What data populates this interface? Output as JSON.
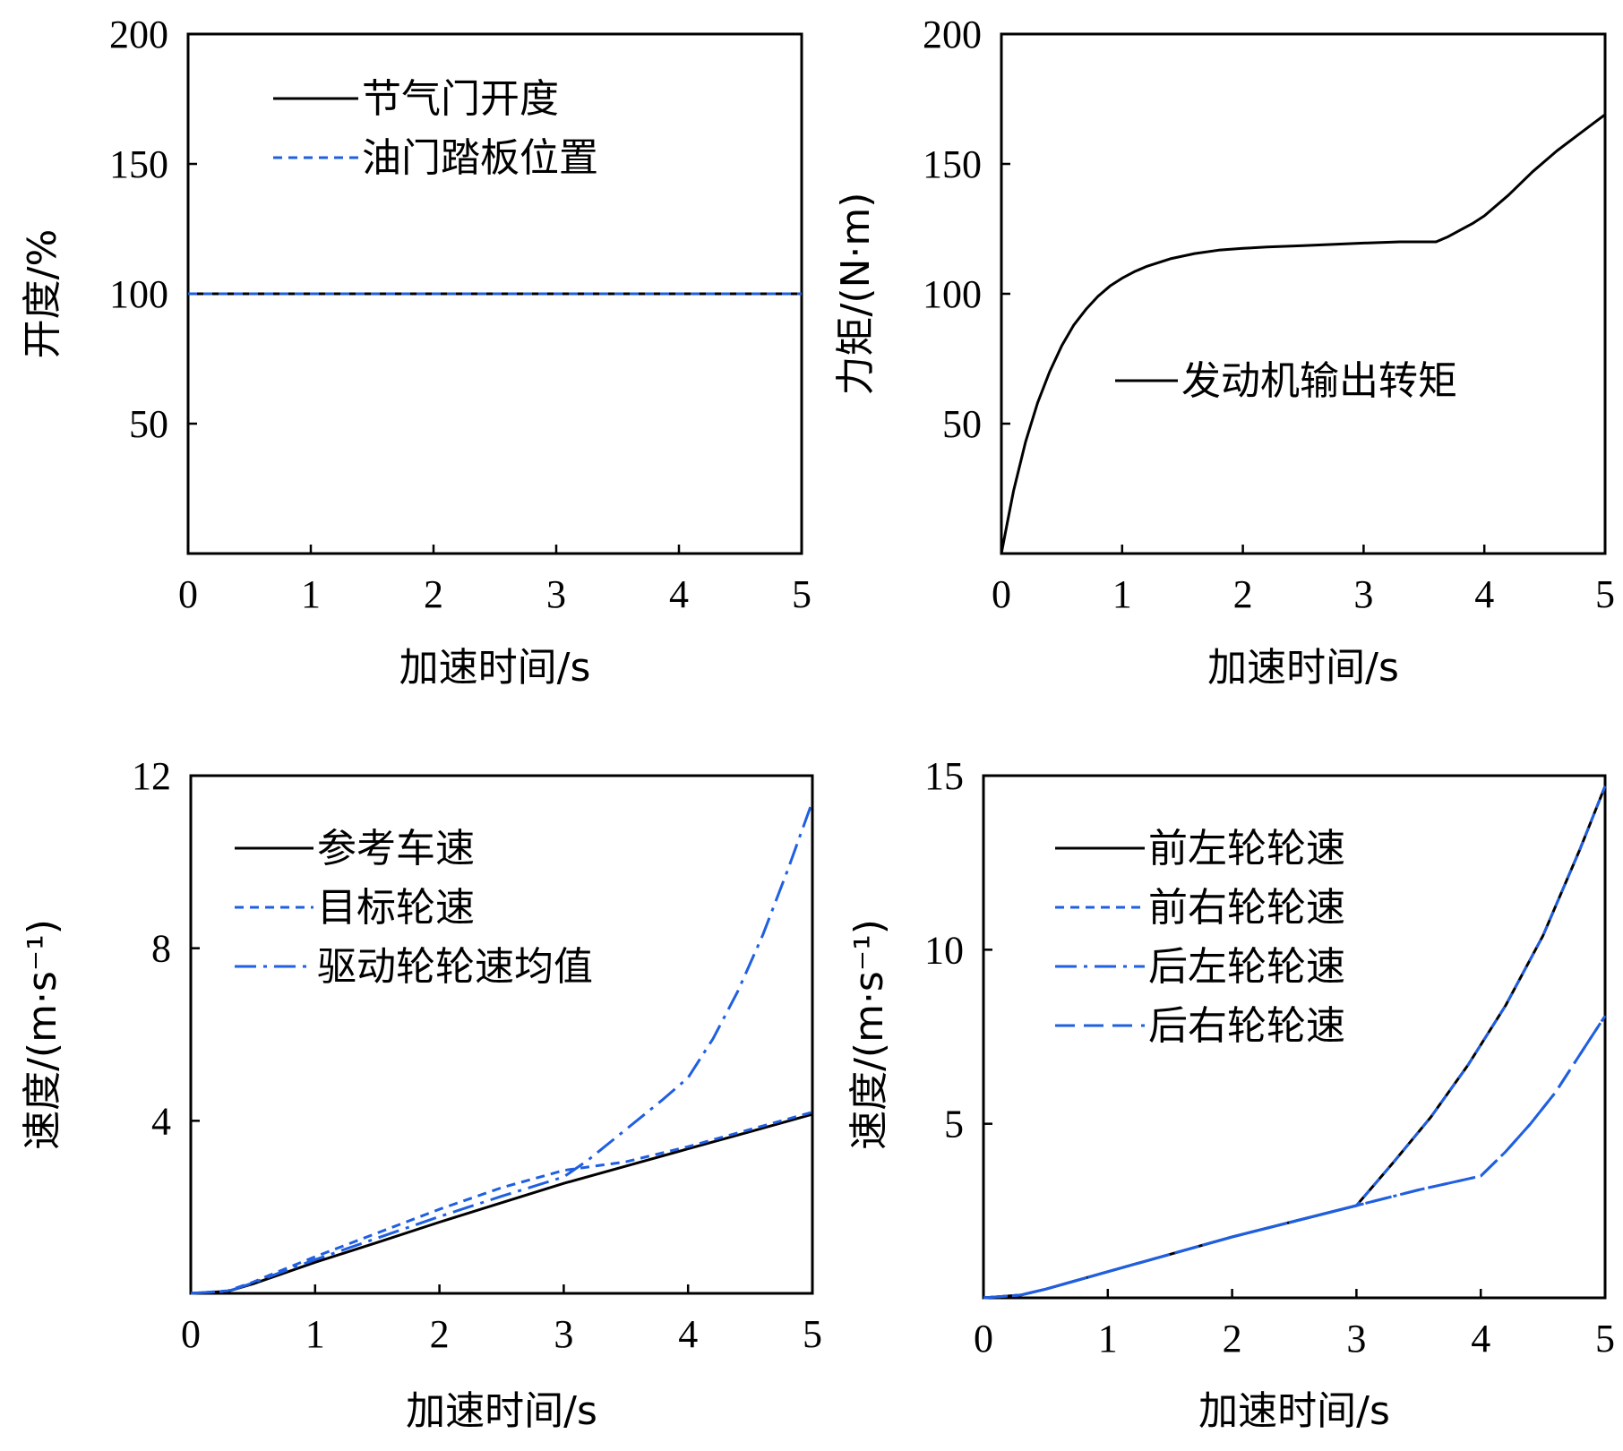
{
  "chart_data": [
    {
      "type": "line",
      "panel": "top-left",
      "xlabel": "加速时间/s",
      "ylabel": "开度/%",
      "xlim": [
        0,
        5
      ],
      "ylim": [
        0,
        200
      ],
      "xticks": [
        "0",
        "1",
        "2",
        "3",
        "4",
        "5"
      ],
      "yticks": [
        "200",
        "150",
        "100",
        "50"
      ],
      "legend_placement": "top-left",
      "series": [
        {
          "name": "节气门开度",
          "color": "#000000",
          "dash": "solid",
          "x": [
            0,
            5
          ],
          "y": [
            100,
            100
          ]
        },
        {
          "name": "油门踏板位置",
          "color": "#1f5fe0",
          "dash": "dot",
          "x": [
            0,
            5
          ],
          "y": [
            100,
            100
          ]
        }
      ]
    },
    {
      "type": "line",
      "panel": "top-right",
      "xlabel": "加速时间/s",
      "ylabel": "力矩/(N·m)",
      "xlim": [
        0,
        5
      ],
      "ylim": [
        0,
        200
      ],
      "xticks": [
        "0",
        "1",
        "2",
        "3",
        "4",
        "5"
      ],
      "yticks": [
        "200",
        "150",
        "100",
        "50"
      ],
      "legend_placement": "center-right",
      "series": [
        {
          "name": "发动机输出转矩",
          "color": "#000000",
          "dash": "solid",
          "x": [
            0,
            0.05,
            0.1,
            0.2,
            0.3,
            0.4,
            0.5,
            0.6,
            0.7,
            0.8,
            0.9,
            1.0,
            1.1,
            1.2,
            1.4,
            1.6,
            1.8,
            2.0,
            2.2,
            2.5,
            3.0,
            3.3,
            3.6,
            3.7,
            3.8,
            3.9,
            4.0,
            4.2,
            4.4,
            4.6,
            4.8,
            5.0
          ],
          "y": [
            0,
            12,
            24,
            43,
            58,
            70,
            80,
            88,
            94,
            99,
            103,
            106,
            108.5,
            110.5,
            113.5,
            115.5,
            116.8,
            117.5,
            118,
            118.5,
            119.5,
            120,
            120,
            122,
            124.5,
            127,
            130,
            138,
            147,
            155,
            162,
            169
          ]
        }
      ]
    },
    {
      "type": "line",
      "panel": "bottom-left",
      "xlabel": "加速时间/s",
      "ylabel": "速度/(m·s⁻¹)",
      "xlim": [
        0,
        5
      ],
      "ylim": [
        0,
        12
      ],
      "xticks": [
        "0",
        "1",
        "2",
        "3",
        "4",
        "5"
      ],
      "yticks": [
        "12",
        "8",
        "4"
      ],
      "legend_placement": "top-left",
      "series": [
        {
          "name": "参考车速",
          "color": "#000000",
          "dash": "solid",
          "x": [
            0,
            0.3,
            0.5,
            0.7,
            1.0,
            1.5,
            2.0,
            2.5,
            3.0,
            3.5,
            4.0,
            4.5,
            5.0
          ],
          "y": [
            0,
            0.05,
            0.22,
            0.42,
            0.72,
            1.18,
            1.65,
            2.1,
            2.55,
            2.95,
            3.35,
            3.75,
            4.15
          ]
        },
        {
          "name": "目标轮速",
          "color": "#1f5fe0",
          "dash": "dot",
          "x": [
            0,
            0.3,
            0.5,
            0.7,
            1.0,
            1.5,
            2.0,
            2.5,
            3.0,
            3.5,
            4.0,
            4.5,
            5.0
          ],
          "y": [
            0,
            0.06,
            0.26,
            0.5,
            0.85,
            1.4,
            1.95,
            2.45,
            2.85,
            3.05,
            3.4,
            3.8,
            4.2
          ]
        },
        {
          "name": "驱动轮轮速均值",
          "color": "#1f5fe0",
          "dash": "dashdot",
          "x": [
            0,
            0.3,
            0.5,
            0.7,
            1.0,
            1.5,
            2.0,
            2.5,
            3.0,
            3.2,
            3.5,
            3.8,
            4.0,
            4.2,
            4.4,
            4.6,
            4.8,
            5.0
          ],
          "y": [
            0,
            0.05,
            0.24,
            0.46,
            0.78,
            1.28,
            1.78,
            2.25,
            2.7,
            3.1,
            3.8,
            4.5,
            5.0,
            5.9,
            7.0,
            8.3,
            9.8,
            11.4
          ]
        }
      ]
    },
    {
      "type": "line",
      "panel": "bottom-right",
      "xlabel": "加速时间/s",
      "ylabel": "速度/(m·s⁻¹)",
      "xlim": [
        0,
        5
      ],
      "ylim": [
        0,
        15
      ],
      "xticks": [
        "0",
        "1",
        "2",
        "3",
        "4",
        "5"
      ],
      "yticks": [
        "15",
        "10",
        "5"
      ],
      "legend_placement": "top-left",
      "series": [
        {
          "name": "前左轮轮速",
          "color": "#000000",
          "dash": "solid",
          "x": [
            0,
            0.3,
            0.5,
            0.7,
            1.0,
            1.5,
            2.0,
            2.5,
            3.0,
            3.3,
            3.6,
            3.9,
            4.2,
            4.5,
            4.8,
            5.0
          ],
          "y": [
            0,
            0.08,
            0.25,
            0.45,
            0.75,
            1.25,
            1.75,
            2.2,
            2.65,
            3.9,
            5.2,
            6.7,
            8.4,
            10.4,
            12.9,
            14.7
          ]
        },
        {
          "name": "前右轮轮速",
          "color": "#1f5fe0",
          "dash": "dot",
          "x": [
            0,
            0.3,
            0.5,
            0.7,
            1.0,
            1.5,
            2.0,
            2.5,
            3.0,
            3.3,
            3.6,
            3.9,
            4.2,
            4.5,
            4.8,
            5.0
          ],
          "y": [
            0,
            0.08,
            0.25,
            0.45,
            0.75,
            1.25,
            1.75,
            2.2,
            2.65,
            3.9,
            5.2,
            6.7,
            8.4,
            10.4,
            12.9,
            14.7
          ]
        },
        {
          "name": "后左轮轮速",
          "color": "#1f5fe0",
          "dash": "dashdot",
          "x": [
            0,
            0.3,
            0.5,
            0.7,
            1.0,
            1.5,
            2.0,
            2.5,
            3.0,
            3.5,
            4.0,
            4.2,
            4.4,
            4.6,
            4.8,
            5.0
          ],
          "y": [
            0,
            0.08,
            0.25,
            0.45,
            0.75,
            1.25,
            1.75,
            2.2,
            2.65,
            3.1,
            3.5,
            4.2,
            5.0,
            5.9,
            7.0,
            8.1
          ]
        },
        {
          "name": "后右轮轮速",
          "color": "#1f5fe0",
          "dash": "dash",
          "x": [
            0,
            0.3,
            0.5,
            0.7,
            1.0,
            1.5,
            2.0,
            2.5,
            3.0,
            3.5,
            4.0,
            4.2,
            4.4,
            4.6,
            4.8,
            5.0
          ],
          "y": [
            0,
            0.08,
            0.25,
            0.45,
            0.75,
            1.25,
            1.75,
            2.2,
            2.65,
            3.1,
            3.5,
            4.2,
            5.0,
            5.9,
            7.0,
            8.1
          ]
        }
      ]
    }
  ]
}
